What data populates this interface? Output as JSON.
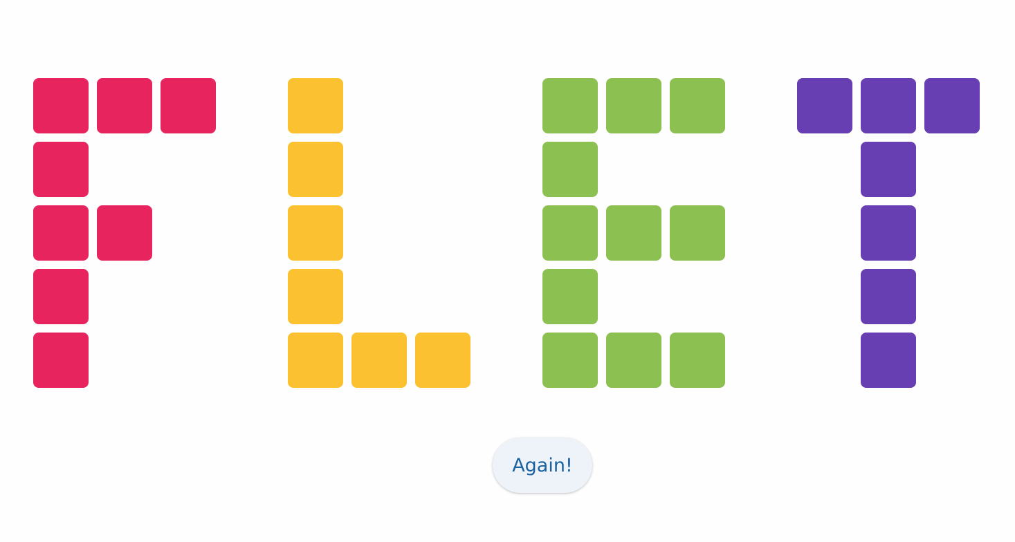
{
  "letters": [
    {
      "char": "F",
      "color": "#E8245F",
      "pattern": [
        "111",
        "100",
        "110",
        "100",
        "100"
      ]
    },
    {
      "char": "L",
      "color": "#FCC130",
      "pattern": [
        "100",
        "100",
        "100",
        "100",
        "111"
      ]
    },
    {
      "char": "E",
      "color": "#8CC051",
      "pattern": [
        "111",
        "100",
        "111",
        "100",
        "111"
      ]
    },
    {
      "char": "T",
      "color": "#673FB3",
      "pattern": [
        "111",
        "010",
        "010",
        "010",
        "010"
      ]
    }
  ],
  "button": {
    "label": "Again!"
  }
}
